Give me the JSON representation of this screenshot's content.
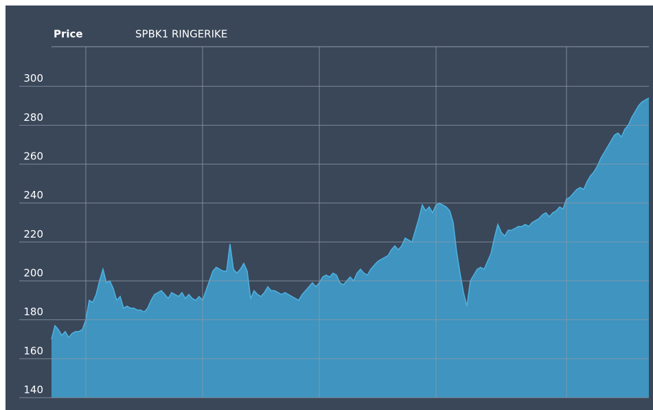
{
  "chart_data": {
    "type": "area",
    "title": "Price",
    "subtitle": "SPBK1 RINGERIKE",
    "series": [
      {
        "name": "SPBK1 RINGERIKE",
        "color": "#3f94c0",
        "line_color": "#4db3e3",
        "values": [
          170,
          177,
          175,
          172,
          174,
          171,
          173,
          174,
          174,
          175,
          180,
          190,
          189,
          193,
          200,
          206,
          199,
          200,
          196,
          190,
          192,
          186,
          187,
          186,
          186,
          185,
          185,
          184,
          186,
          190,
          193,
          194,
          195,
          193,
          191,
          194,
          193,
          192,
          194,
          191,
          193,
          191,
          190,
          192,
          190,
          195,
          200,
          205,
          207,
          206,
          205,
          205,
          219,
          206,
          204,
          206,
          209,
          205,
          191,
          195,
          193,
          192,
          194,
          197,
          195,
          195,
          194,
          193,
          194,
          193,
          192,
          191,
          190,
          193,
          195,
          197,
          199,
          197,
          199,
          202,
          203,
          202,
          204,
          203,
          199,
          198,
          200,
          202,
          200,
          204,
          206,
          204,
          203,
          206,
          208,
          210,
          211,
          212,
          213,
          216,
          218,
          216,
          218,
          222,
          221,
          220,
          226,
          232,
          239,
          236,
          238,
          235,
          239,
          240,
          239,
          238,
          236,
          230,
          215,
          204,
          194,
          187,
          200,
          203,
          206,
          207,
          206,
          210,
          214,
          222,
          229,
          225,
          223,
          226,
          226,
          227,
          228,
          228,
          229,
          228,
          230,
          231,
          232,
          234,
          235,
          233,
          235,
          236,
          238,
          237,
          242,
          243,
          245,
          247,
          248,
          247,
          251,
          254,
          256,
          259,
          263,
          266,
          269,
          272,
          275,
          276,
          274,
          278,
          280,
          284,
          287,
          290,
          292,
          293,
          294
        ]
      }
    ],
    "xlim": [
      0,
      174
    ],
    "xticks": [
      10,
      44,
      78,
      112,
      150
    ],
    "ylim": [
      140,
      320
    ],
    "yticks": [
      140,
      160,
      180,
      200,
      220,
      240,
      260,
      280,
      300
    ],
    "grid": true,
    "background": "#3a4759",
    "grid_color": "#8d99a8"
  }
}
